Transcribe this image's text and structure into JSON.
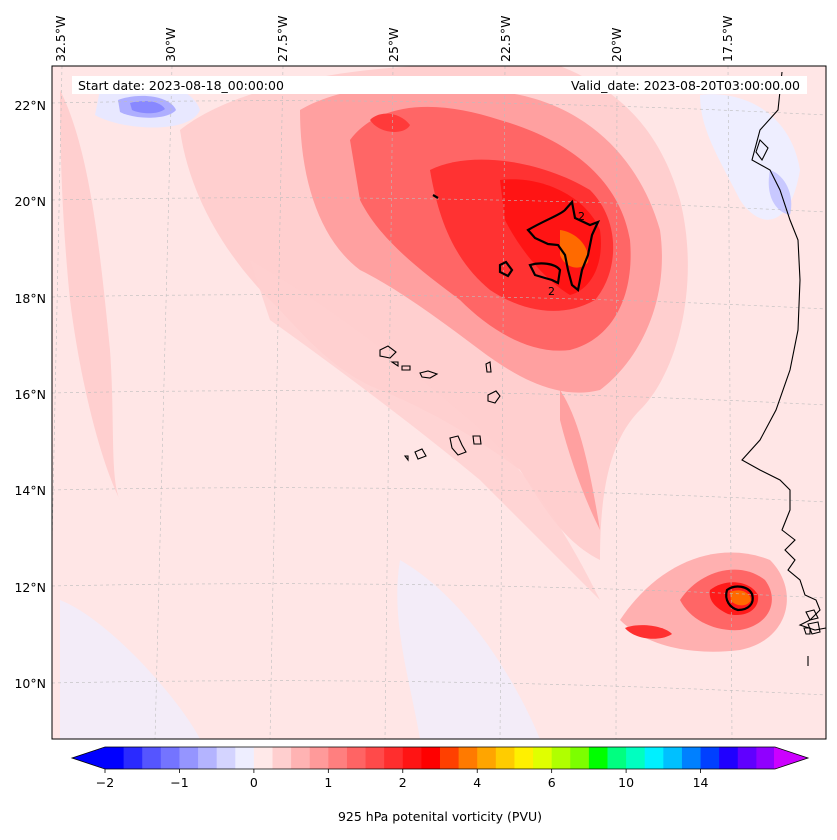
{
  "header": {
    "start_date": "Start date: 2023-08-18_00:00:00",
    "valid_date": "Valid_date: 2023-08-20T03:00:00.00"
  },
  "map": {
    "projection": "lambert-conformal",
    "lon_labels": [
      "32.5°W",
      "30°W",
      "27.5°W",
      "25°W",
      "22.5°W",
      "20°W",
      "17.5°W"
    ],
    "lat_labels": [
      "22°N",
      "20°N",
      "18°N",
      "16°N",
      "14°N",
      "12°N",
      "10°N"
    ],
    "gridlines": "dashed-light-gray",
    "contour_label": "2",
    "field_colors": {
      "background": "#ffe6e6",
      "light_red": "#ffbcbc",
      "medium_red": "#ff8080",
      "red": "#ff4040",
      "deep_red": "#ff1a1a",
      "orange": "#ff7a00",
      "light_blue": "#e6e6ff",
      "blue": "#8888ff",
      "contour": "#000000",
      "coast": "#000000"
    }
  },
  "colorbar": {
    "label": "925 hPa potenital vorticity (PVU)",
    "ticks": [
      "−2",
      "−1",
      "0",
      "1",
      "2",
      "4",
      "6",
      "10",
      "14"
    ],
    "colors": [
      "#0000ff",
      "#2a2aff",
      "#5555ff",
      "#7474ff",
      "#9595ff",
      "#b4b4ff",
      "#d4d4ff",
      "#eeeeff",
      "#ffe9e9",
      "#ffcfcf",
      "#ffb3b3",
      "#ff9a9a",
      "#ff7f7f",
      "#ff6464",
      "#ff4a4a",
      "#ff2e2e",
      "#ff1414",
      "#ff0000",
      "#ff4000",
      "#ff7a00",
      "#ffa500",
      "#ffcc00",
      "#fff000",
      "#e0ff00",
      "#b0ff00",
      "#7cff00",
      "#00ff00",
      "#00ff80",
      "#00ffc0",
      "#00f0ff",
      "#00c0ff",
      "#0080ff",
      "#0040ff",
      "#2000ff",
      "#6000ff",
      "#9000ff"
    ],
    "arrow_left_color": "#0000ff",
    "arrow_right_color": "#cc00ff"
  }
}
